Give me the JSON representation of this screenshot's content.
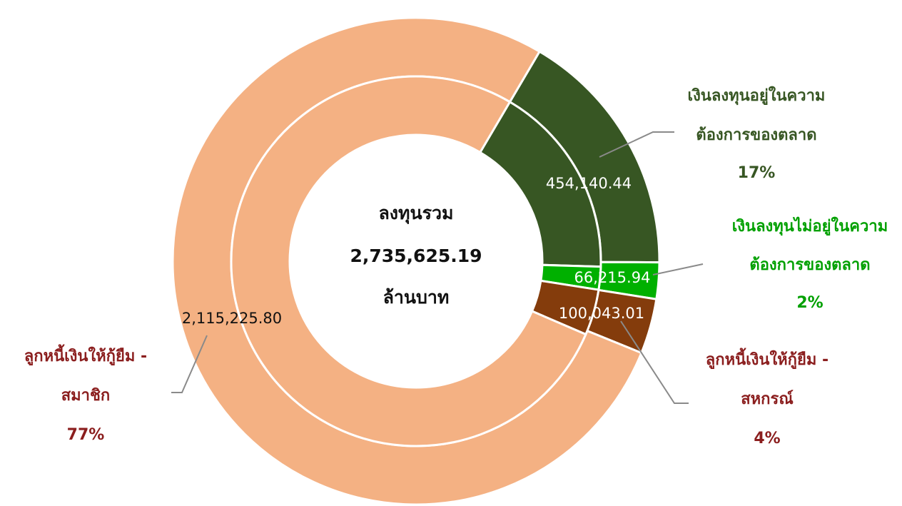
{
  "chart_data": {
    "type": "pie",
    "categories": [
      [
        "เงินลงทุนอยู่ในความ",
        "ต้องการของตลาด"
      ],
      [
        "เงินลงทุนไม่อยู่ในความ",
        "ต้องการของตลาด"
      ],
      [
        "ลูกหนี้เงินให้กู้ยืม -",
        "สหกรณ์"
      ],
      [
        "ลูกหนี้เงินให้กู้ยืม -",
        "สมาชิก"
      ]
    ],
    "values": [
      454140.44,
      66215.94,
      100043.01,
      2115225.8
    ],
    "value_labels": [
      "454,140.44",
      "66,215.94",
      "100,043.01",
      "2,115,225.80"
    ],
    "percents": [
      17,
      2,
      4,
      77
    ],
    "percent_labels": [
      "17%",
      "2%",
      "4%",
      "77%"
    ],
    "colors": [
      "#375623",
      "#00b000",
      "#843c0c",
      "#f4b183"
    ],
    "label_colors": [
      "#375623",
      "#00a000",
      "#8b1e1e",
      "#8b1e1e"
    ],
    "value_label_colors": [
      "#ffffff",
      "#ffffff",
      "#ffffff",
      "#111111"
    ],
    "center_title": "ลงทุนรวม",
    "center_value": "2,735,625.19",
    "center_unit": "ล้านบาท"
  }
}
